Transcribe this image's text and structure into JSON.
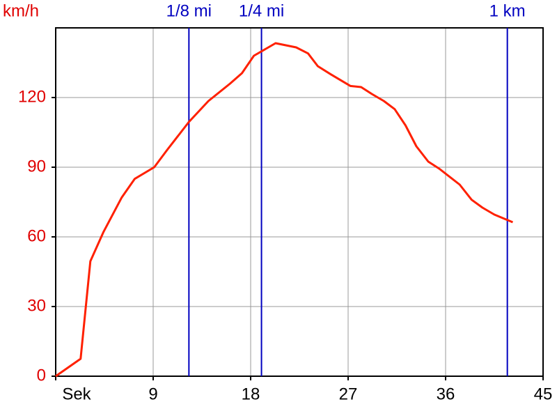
{
  "chart_data": {
    "type": "line",
    "y_label": "km/h",
    "x": [
      0,
      2.3,
      3.2,
      4.4,
      6.1,
      7.3,
      9.1,
      10.3,
      12.3,
      14.1,
      16.1,
      17.2,
      18.3,
      20.3,
      22.2,
      23.3,
      24.2,
      25.4,
      27.2,
      28.2,
      29.2,
      30.3,
      31.3,
      32.3,
      33.3,
      34.4,
      35.4,
      37.3,
      38.4,
      39.4,
      40.5,
      42.2
    ],
    "series": [
      {
        "name": "km/h",
        "color": "#ff2000",
        "values": [
          0,
          7.5,
          49.5,
          62,
          77,
          85,
          90,
          97.5,
          109.5,
          118.5,
          126,
          130.5,
          138,
          143.4,
          141.6,
          139,
          133.5,
          130,
          125,
          124.5,
          121.5,
          118.5,
          115,
          108,
          99,
          92.4,
          89.4,
          82.5,
          76,
          72.6,
          69.6,
          66.3
        ]
      }
    ],
    "xlim": [
      0,
      45
    ],
    "xticks": [
      {
        "value": 0,
        "label": "Sek"
      },
      9,
      18,
      27,
      36,
      45
    ],
    "ylim": [
      0,
      150
    ],
    "yticks": [
      0,
      30,
      60,
      90,
      120
    ],
    "grid": true,
    "label_color": "#e00000",
    "markers": [
      {
        "label": "1/8 mi",
        "x": 12.3
      },
      {
        "label": "1/4 mi",
        "x": 19.0
      },
      {
        "label": "1 km",
        "x": 41.7
      }
    ],
    "marker_color": "#0000c0"
  }
}
